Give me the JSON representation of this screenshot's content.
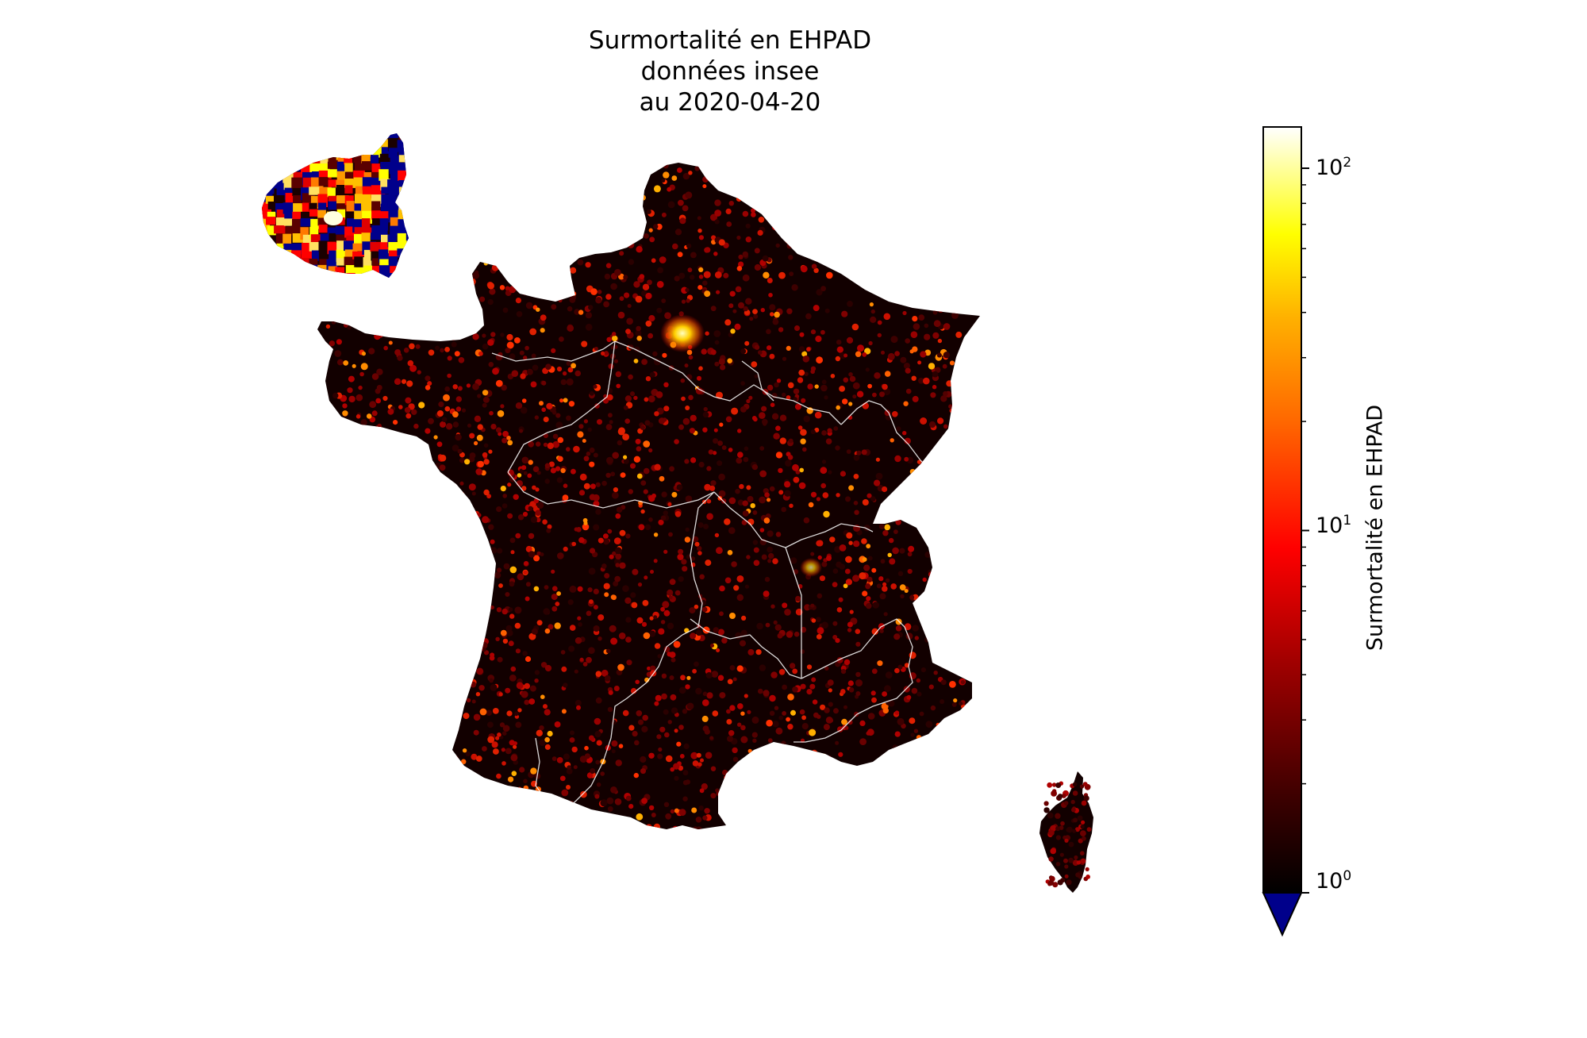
{
  "figure": {
    "title_lines": [
      "Surmortalité en EHPAD",
      "données insee",
      "au 2020-04-20"
    ]
  },
  "colorbar": {
    "label": "Surmortalité en EHPAD",
    "scale": "log",
    "colormap": "hot",
    "range": [
      1,
      130
    ],
    "under_color": "#00008b",
    "ticks": [
      {
        "base": "10",
        "exp": "0",
        "value": 1
      },
      {
        "base": "10",
        "exp": "1",
        "value": 10
      },
      {
        "base": "10",
        "exp": "2",
        "value": 100
      }
    ]
  },
  "map": {
    "regions": [
      "France métropolitaine",
      "Île-de-France (inset)",
      "Corse"
    ],
    "background_color": "#0d0000",
    "border_color": "#ffffff"
  },
  "colors": {
    "dark": "#1a0000",
    "red": "#ff0000",
    "orange": "#ff7a00",
    "yellow": "#ffff00",
    "white": "#ffffff",
    "blue": "#00008b"
  }
}
